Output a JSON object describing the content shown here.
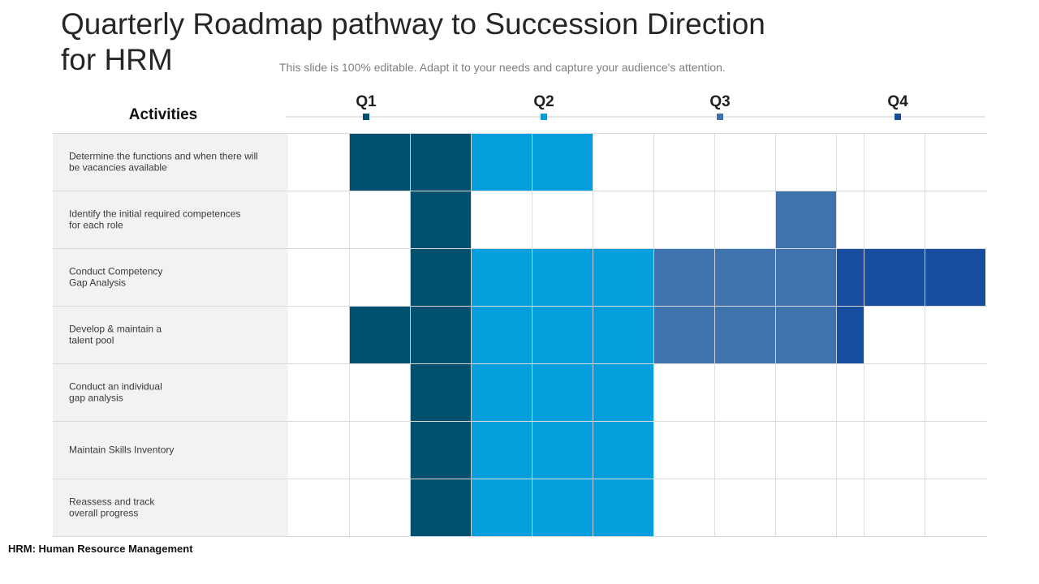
{
  "title": "Quarterly Roadmap pathway to Succession Direction for HRM",
  "subtitle": "This slide is 100% editable. Adapt it to your needs and capture your audience's attention.",
  "footnote": "HRM: Human Resource Management",
  "colors": {
    "dark_teal": "#02506f",
    "bright_blue": "#059edc",
    "steel_blue": "#3f73ad",
    "royal_blue": "#164d9e",
    "row_label_bg": "#f2f2f2",
    "grid_line": "#d9d9d9"
  },
  "chart_data": {
    "type": "table",
    "row_header": "Activities",
    "quarters": [
      {
        "label": "Q1",
        "color": "#02506f"
      },
      {
        "label": "Q2",
        "color": "#059edc"
      },
      {
        "label": "Q3",
        "color": "#3f73ad"
      },
      {
        "label": "Q4",
        "color": "#164d9e"
      }
    ],
    "activities": [
      {
        "label": "Determine the functions and when there will be vacancies available",
        "cells": [
          "",
          "Q1",
          "Q1",
          "Q2",
          "Q2",
          "",
          "",
          "",
          "",
          "",
          "",
          ""
        ]
      },
      {
        "label": "Identify the initial required competences for each role",
        "cells": [
          "",
          "",
          "Q1",
          "",
          "",
          "",
          "",
          "",
          "Q3",
          "",
          "",
          ""
        ]
      },
      {
        "label": "Conduct Competency\nGap Analysis",
        "cells": [
          "",
          "",
          "Q1",
          "Q2",
          "Q2",
          "Q2",
          "Q3",
          "Q3",
          "Q3",
          "Q4",
          "Q4",
          "Q4"
        ]
      },
      {
        "label": "Develop & maintain a\ntalent pool",
        "cells": [
          "",
          "Q1",
          "Q1",
          "Q2",
          "Q2",
          "Q2",
          "Q3",
          "Q3",
          "Q3",
          "Q4",
          "",
          ""
        ]
      },
      {
        "label": "Conduct an individual\ngap analysis",
        "cells": [
          "",
          "",
          "Q1",
          "Q2",
          "Q2",
          "Q2",
          "",
          "",
          "",
          "",
          "",
          ""
        ]
      },
      {
        "label": "Maintain Skills Inventory",
        "cells": [
          "",
          "",
          "Q1",
          "Q2",
          "Q2",
          "Q2",
          "",
          "",
          "",
          "",
          "",
          ""
        ]
      },
      {
        "label": "Reassess and track\noverall progress",
        "cells": [
          "",
          "",
          "Q1",
          "Q2",
          "Q2",
          "Q2",
          "",
          "",
          "",
          "",
          "",
          ""
        ]
      }
    ]
  }
}
